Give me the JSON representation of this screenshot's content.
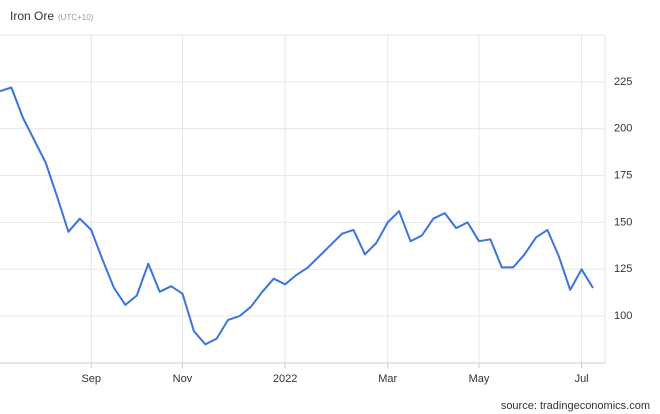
{
  "chart_data": {
    "type": "line",
    "title": "Iron Ore",
    "subtitle": "(UTC+10)",
    "source": "source: tradingeconomics.com",
    "categories": [
      null,
      null,
      null,
      null,
      null,
      null,
      null,
      null,
      "Sep",
      null,
      null,
      null,
      null,
      null,
      null,
      null,
      "Nov",
      null,
      null,
      null,
      null,
      null,
      null,
      null,
      null,
      "2022",
      null,
      null,
      null,
      null,
      null,
      null,
      null,
      null,
      "Mar",
      null,
      null,
      null,
      null,
      null,
      null,
      null,
      "May",
      null,
      null,
      null,
      null,
      null,
      null,
      null,
      null,
      "Jul",
      null
    ],
    "series": [
      {
        "name": "Iron Ore",
        "color": "#3c74dc",
        "values": [
          220,
          222,
          206,
          194,
          182,
          164,
          145,
          152,
          146,
          130,
          115,
          106,
          111,
          128,
          113,
          116,
          112,
          92,
          85,
          88,
          98,
          100,
          105,
          113,
          120,
          117,
          122,
          126,
          132,
          138,
          144,
          146,
          133,
          139,
          150,
          156,
          140,
          143,
          152,
          155,
          147,
          150,
          140,
          141,
          126,
          126,
          133,
          142,
          146,
          132,
          114,
          125,
          115
        ]
      }
    ],
    "ylim": [
      75,
      250
    ],
    "yticks": [
      100,
      125,
      150,
      175,
      200,
      225
    ],
    "grid": true
  }
}
